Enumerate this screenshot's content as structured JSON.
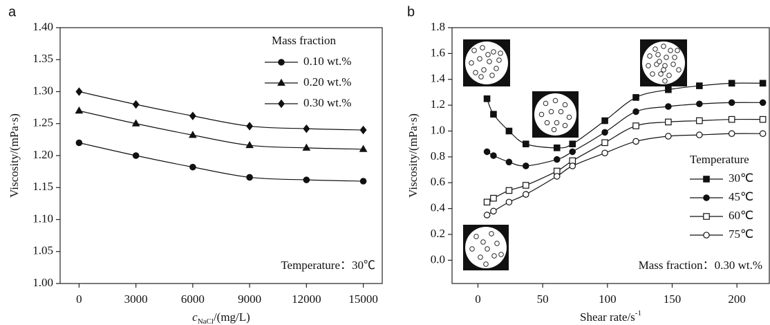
{
  "chart_data": [
    {
      "type": "line",
      "panel_label": "a",
      "y_label": "Viscosity/(mPa·s)",
      "x_label_var": "c",
      "x_label_sub": "NaCl",
      "x_label_unit": "/(mg/L)",
      "x": [
        0,
        3000,
        6000,
        9000,
        12000,
        15000
      ],
      "xlim": [
        -1000,
        16000
      ],
      "xticks": [
        0,
        3000,
        6000,
        9000,
        12000,
        15000
      ],
      "ylim": [
        1.0,
        1.4
      ],
      "yticks": [
        {
          "value": 1.0,
          "label": "1.00"
        },
        1.05,
        {
          "value": 1.1,
          "label": "1.10"
        },
        1.15,
        {
          "value": 1.2,
          "label": "1.20"
        },
        1.25,
        {
          "value": 1.3,
          "label": "1.30"
        },
        1.35,
        {
          "value": 1.4,
          "label": "1.40"
        }
      ],
      "legend_title": "Mass fraction",
      "legend": "upper right",
      "annotation": "Temperature：30℃",
      "series": [
        {
          "name": "0.10 wt.%",
          "color": "#111",
          "marker": "circle",
          "filled": true,
          "values": [
            1.22,
            1.2,
            1.182,
            1.166,
            1.162,
            1.16
          ]
        },
        {
          "name": "0.20 wt.%",
          "color": "#111",
          "marker": "triangle",
          "filled": true,
          "values": [
            1.27,
            1.25,
            1.232,
            1.216,
            1.212,
            1.21
          ]
        },
        {
          "name": "0.30 wt.%",
          "color": "#111",
          "marker": "diamond",
          "filled": true,
          "values": [
            1.3,
            1.28,
            1.262,
            1.246,
            1.242,
            1.24
          ]
        }
      ]
    },
    {
      "type": "line",
      "panel_label": "b",
      "y_label": "Viscosity/(mPa·s)",
      "x_label": "Shear rate/s",
      "x_label_sup": "-1",
      "x": [
        7,
        12,
        24,
        37,
        61,
        73,
        98,
        122,
        147,
        171,
        196,
        220
      ],
      "xlim": [
        -20,
        225
      ],
      "xticks": [
        0,
        50,
        100,
        150,
        200
      ],
      "ylim": [
        -0.18,
        1.8
      ],
      "yticks": [
        {
          "value": 0,
          "label": "0.0"
        },
        0.2,
        0.4,
        0.6,
        0.8,
        {
          "value": 1.0,
          "label": "1.0"
        },
        1.2,
        1.4,
        1.6,
        1.8
      ],
      "legend_title": "Temperature",
      "legend": "lower right",
      "annotation": "Mass fraction：0.30 wt.%",
      "series": [
        {
          "name": "30℃",
          "color": "#111",
          "marker": "square",
          "filled": true,
          "values": [
            1.25,
            1.13,
            1.0,
            0.9,
            0.87,
            0.9,
            1.08,
            1.26,
            1.32,
            1.35,
            1.37,
            1.37
          ]
        },
        {
          "name": "45℃",
          "color": "#111",
          "marker": "circle",
          "filled": true,
          "values": [
            0.84,
            0.81,
            0.76,
            0.73,
            0.78,
            0.84,
            0.99,
            1.15,
            1.19,
            1.21,
            1.22,
            1.22
          ]
        },
        {
          "name": "60℃",
          "color": "#111",
          "marker": "square",
          "filled": false,
          "values": [
            0.45,
            0.48,
            0.54,
            0.58,
            0.69,
            0.77,
            0.91,
            1.04,
            1.07,
            1.08,
            1.09,
            1.09
          ]
        },
        {
          "name": "75℃",
          "color": "#111",
          "marker": "circle",
          "filled": false,
          "values": [
            0.35,
            0.38,
            0.45,
            0.51,
            0.65,
            0.73,
            0.83,
            0.92,
            0.96,
            0.97,
            0.98,
            0.98
          ]
        }
      ]
    }
  ]
}
